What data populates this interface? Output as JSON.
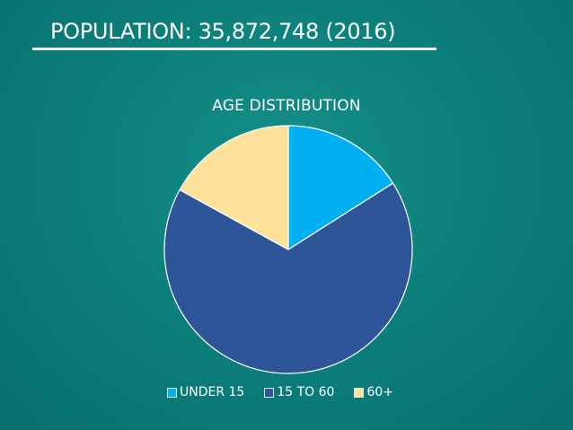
{
  "slide": {
    "title": "POPULATION: 35,872,748 (2016)"
  },
  "chart_data": {
    "type": "pie",
    "title": "AGE DISTRIBUTION",
    "categories": [
      "UNDER 15",
      "15 TO 60",
      "60+"
    ],
    "values": [
      16,
      67,
      17
    ],
    "colors": [
      "#00b0f0",
      "#2e5597",
      "#fce29a"
    ],
    "slice_border_color": "#ffffff",
    "legend_position": "bottom",
    "start_angle": "top, clockwise"
  }
}
